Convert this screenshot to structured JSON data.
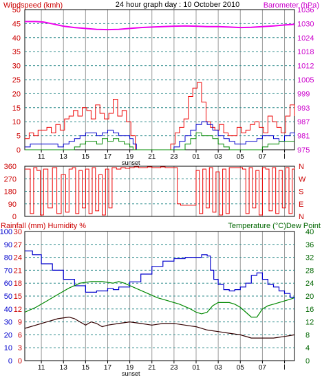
{
  "colors": {
    "wind": "#ee0000",
    "gust": "#ee0000",
    "avg_wind": "#0000cc",
    "low_wind": "#008800",
    "barometer": "#ee00ee",
    "direction": "#ee0000",
    "humidity": "#0000cc",
    "temperature": "#008800",
    "dew_point": "#330000",
    "grid": "#2a8a8a",
    "vgrid": "#9a9a9a",
    "text_black": "#000000",
    "text_red": "#cc0000",
    "text_green": "#006600",
    "text_magenta": "#cc00cc",
    "text_blue": "#0000cc"
  },
  "chart_data": [
    {
      "type": "line",
      "title": "24 hour graph day : 10 October 2010",
      "xlabel": "sunset",
      "left_axis_label": "Windspeed (kmh)",
      "right_axis_label": "Barometer (hPa)",
      "x_ticks": [
        "11",
        "13",
        "15",
        "17",
        "19",
        "21",
        "23",
        "01",
        "03",
        "05",
        "07",
        "l"
      ],
      "y_left_ticks": [
        "50",
        "45",
        "40",
        "35",
        "30",
        "25",
        "20",
        "15",
        "10",
        "5",
        "0"
      ],
      "y_right_ticks": [
        "1036",
        "1030",
        "1024",
        "1018",
        "1012",
        "1005",
        "999",
        "993",
        "987",
        "981",
        "975"
      ],
      "ylim_left": [
        0,
        50
      ],
      "ylim_right": [
        975,
        1036
      ],
      "x_range_hours": [
        9.5,
        33.9
      ],
      "sunset_hour": 19.1,
      "grid": true,
      "series": [
        {
          "name": "Barometer (hPa)",
          "axis": "right",
          "x": [
            9.5,
            10.5,
            11.2,
            12,
            13,
            14,
            15,
            16,
            17,
            18,
            19,
            20,
            21,
            22,
            23,
            24,
            25,
            26,
            27,
            28,
            29,
            30,
            31,
            32,
            33,
            33.9
          ],
          "values": [
            1030.8,
            1030.8,
            1030.6,
            1029.8,
            1028.8,
            1028.2,
            1027.8,
            1027.4,
            1027.3,
            1027.4,
            1027.8,
            1028.2,
            1028.4,
            1028.6,
            1028.8,
            1028.9,
            1028.8,
            1028.6,
            1028.6,
            1028.4,
            1028.2,
            1028.3,
            1028.6,
            1028.9,
            1029.3,
            1029.6
          ]
        },
        {
          "name": "Gust",
          "axis": "left",
          "x": [
            9.5,
            9.9,
            10.3,
            10.7,
            11.1,
            11.5,
            11.9,
            12.3,
            12.7,
            13.1,
            13.5,
            13.9,
            14.3,
            14.7,
            15.1,
            15.5,
            15.9,
            16.3,
            16.7,
            17.1,
            17.5,
            17.9,
            18.3,
            18.7,
            19.1,
            19.5,
            19.9,
            20.3,
            20.7,
            21.1,
            21.5,
            21.9,
            22.3,
            22.7,
            23.1,
            23.5,
            23.9,
            24.3,
            24.7,
            25.1,
            25.5,
            25.9,
            26.3,
            26.7,
            27.1,
            27.5,
            27.9,
            28.3,
            28.7,
            29.1,
            29.5,
            29.9,
            30.3,
            30.7,
            31.1,
            31.5,
            31.9,
            32.3,
            32.7,
            33.1,
            33.5,
            33.9
          ],
          "values": [
            4,
            6,
            5,
            7,
            7,
            8,
            6,
            9,
            7,
            11,
            12,
            14,
            12,
            15,
            14,
            11,
            16,
            13,
            11,
            13,
            18,
            12,
            14,
            10,
            5,
            0,
            0,
            0,
            0,
            0,
            0,
            0,
            0,
            2,
            6,
            8,
            11,
            19,
            22,
            24,
            17,
            10,
            8,
            7,
            9,
            6,
            5,
            5,
            8,
            6,
            7,
            9,
            10,
            8,
            6,
            12,
            10,
            8,
            6,
            12,
            16,
            12
          ]
        },
        {
          "name": "Average wind",
          "axis": "left",
          "x": [
            9.5,
            10,
            10.5,
            11,
            11.5,
            12,
            12.5,
            13,
            13.5,
            14,
            14.5,
            15,
            15.5,
            16,
            16.5,
            17,
            17.5,
            18,
            18.5,
            19,
            19.3,
            19.6,
            22.5,
            23,
            23.5,
            24,
            24.5,
            25,
            25.5,
            26,
            26.5,
            27,
            27.5,
            28,
            28.5,
            29,
            29.5,
            30,
            30.5,
            31,
            31.5,
            32,
            32.5,
            33,
            33.5,
            33.9
          ],
          "values": [
            1,
            2,
            2,
            2,
            2,
            2,
            1,
            2,
            3,
            4,
            5,
            6,
            6,
            5,
            6,
            7,
            6,
            5,
            5,
            4,
            2,
            0,
            0,
            1,
            3,
            5,
            7,
            9,
            10,
            9,
            7,
            5,
            4,
            3,
            2,
            2,
            3,
            3,
            4,
            5,
            5,
            4,
            3,
            5,
            6,
            5
          ]
        },
        {
          "name": "Low wind",
          "axis": "left",
          "x": [
            9.5,
            13.5,
            14,
            14.5,
            15,
            15.5,
            16,
            16.5,
            17,
            17.5,
            18,
            18.5,
            19,
            19.3,
            22.5,
            23.5,
            24,
            24.5,
            25,
            25.5,
            26,
            26.5,
            27,
            27.5,
            28,
            28.5,
            29,
            29.5,
            30,
            30.5,
            31,
            31.5,
            32,
            32.5,
            33,
            33.5,
            33.9
          ],
          "values": [
            0,
            0,
            1,
            2,
            3,
            3,
            2,
            4,
            3,
            4,
            3,
            2,
            1,
            0,
            0,
            0,
            2,
            4,
            6,
            5,
            5,
            4,
            2,
            1,
            0,
            0,
            0,
            0,
            0,
            0,
            1,
            2,
            2,
            3,
            3,
            3,
            3
          ]
        }
      ]
    },
    {
      "type": "line",
      "title": "",
      "y_left_ticks": [
        "360",
        "270",
        "180",
        "90",
        "0"
      ],
      "y_right_ticks": [
        "N",
        "W",
        "S",
        "E",
        "N"
      ],
      "ylim_left": [
        0,
        360
      ],
      "x_range_hours": [
        9.5,
        33.9
      ],
      "grid": true,
      "series": [
        {
          "name": "Wind direction",
          "axis": "left",
          "x": [
            9.5,
            10,
            10.3,
            10.6,
            10.9,
            11.2,
            11.6,
            12,
            12.4,
            12.8,
            13.2,
            13.5,
            13.8,
            14.1,
            14.4,
            14.7,
            15,
            15.3,
            15.6,
            15.9,
            16.2,
            16.5,
            16.8,
            17.1,
            17.4,
            17.8,
            18.2,
            18.6,
            19,
            19.4,
            19.8,
            20.2,
            20.6,
            21,
            21.4,
            21.8,
            22.2,
            22.6,
            23,
            23.3,
            23.6,
            24,
            24.4,
            24.7,
            25,
            25.3,
            25.6,
            25.9,
            26.2,
            26.5,
            26.8,
            27.1,
            27.4,
            27.7,
            28,
            28.3,
            28.6,
            28.9,
            29.2,
            29.5,
            29.8,
            30.1,
            30.4,
            30.7,
            31,
            31.3,
            31.6,
            31.9,
            32.2,
            32.5,
            32.8,
            33.1,
            33.4,
            33.7,
            33.9
          ],
          "values": [
            340,
            20,
            350,
            330,
            10,
            340,
            60,
            350,
            20,
            300,
            30,
            340,
            350,
            20,
            330,
            60,
            340,
            20,
            350,
            40,
            300,
            10,
            340,
            60,
            350,
            340,
            350,
            345,
            350,
            355,
            350,
            350,
            355,
            350,
            350,
            355,
            350,
            350,
            350,
            90,
            80,
            80,
            80,
            80,
            330,
            20,
            340,
            60,
            350,
            30,
            320,
            10,
            340,
            20,
            350,
            350,
            350,
            350,
            340,
            20,
            350,
            60,
            330,
            10,
            350,
            340,
            40,
            350,
            20,
            330,
            60,
            350,
            20,
            340,
            350
          ]
        }
      ]
    },
    {
      "type": "line",
      "title": "",
      "left_axis_label": "Rainfall (mm)  Humidity %",
      "right_axis_label": "Temperature (°C)Dew Point",
      "xlabel": "sunset",
      "x_ticks": [
        "11",
        "13",
        "15",
        "17",
        "19",
        "21",
        "23",
        "01",
        "03",
        "05",
        "07",
        "l"
      ],
      "y_humidity_ticks": [
        "100",
        "90",
        "80",
        "70",
        "60",
        "50",
        "40",
        "30",
        "20",
        "10",
        "0"
      ],
      "y_rain_ticks": [
        "30",
        "27",
        "24",
        "21",
        "18",
        "15",
        "12",
        "9",
        "6",
        "3",
        "0"
      ],
      "y_right_ticks": [
        "40",
        "36",
        "32",
        "28",
        "24",
        "20",
        "16",
        "12",
        "8",
        "4",
        "0"
      ],
      "ylim_humidity": [
        0,
        100
      ],
      "ylim_temperature": [
        0,
        40
      ],
      "x_range_hours": [
        9.5,
        33.9
      ],
      "grid": true,
      "series": [
        {
          "name": "Humidity %",
          "axis": "humidity",
          "x": [
            9.5,
            10.2,
            11,
            12,
            13,
            14,
            15,
            16,
            17,
            17.5,
            18,
            19,
            20,
            21,
            22,
            23,
            24,
            25,
            25.5,
            26,
            26.3,
            26.6,
            27,
            27.5,
            28,
            28.5,
            29,
            29.5,
            30,
            30.5,
            31,
            31.5,
            32,
            32.5,
            33,
            33.5,
            33.9
          ],
          "values": [
            85,
            82,
            75,
            70,
            63,
            58,
            53,
            54,
            56,
            55,
            57,
            61,
            67,
            73,
            77,
            79,
            80,
            80,
            82,
            81,
            70,
            63,
            59,
            55,
            54,
            55,
            57,
            60,
            66,
            68,
            63,
            59,
            57,
            54,
            52,
            49,
            47
          ]
        },
        {
          "name": "Temperature (°C)",
          "axis": "temperature",
          "x": [
            9.5,
            10.5,
            11.5,
            12.5,
            13.5,
            14.5,
            15.5,
            16.5,
            17.5,
            18,
            18.5,
            19.5,
            20.5,
            21.5,
            22.5,
            23.5,
            24.5,
            25,
            25.5,
            26,
            26.5,
            27,
            27.5,
            28,
            28.5,
            29,
            29.5,
            30,
            30.5,
            31,
            31.5,
            32,
            32.5,
            33,
            33.5,
            33.9
          ],
          "values": [
            15,
            16.5,
            18.5,
            20.5,
            22.5,
            24,
            24.5,
            24.5,
            24,
            24.5,
            24,
            22.5,
            21,
            19.5,
            18.5,
            17.5,
            16,
            15,
            14.5,
            15,
            17,
            18,
            18,
            18,
            17.5,
            16.5,
            15,
            13.5,
            13.5,
            16,
            17,
            17.5,
            18,
            18.5,
            19,
            19.5
          ]
        },
        {
          "name": "Dew Point",
          "axis": "temperature",
          "x": [
            9.5,
            10.5,
            11.5,
            12.5,
            13.5,
            14,
            14.5,
            15,
            15.5,
            16,
            16.5,
            17,
            18,
            19,
            20,
            21,
            22,
            23,
            24,
            25,
            26,
            27,
            28,
            29,
            30,
            31,
            32,
            33,
            33.9
          ],
          "values": [
            10,
            11,
            12,
            13,
            13.5,
            13,
            12,
            11,
            12,
            11.5,
            10.5,
            11,
            11.5,
            12,
            11.5,
            11,
            11.5,
            11.5,
            11,
            10.5,
            9.5,
            9,
            8.5,
            8,
            7,
            7,
            7,
            7.5,
            8
          ]
        }
      ]
    }
  ]
}
